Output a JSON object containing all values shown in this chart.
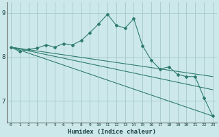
{
  "xlabel": "Humidex (Indice chaleur)",
  "bg_color": "#cce8ea",
  "grid_color": "#aacdd0",
  "line_color": "#2d7b6e",
  "xlim": [
    -0.5,
    23.5
  ],
  "ylim": [
    6.5,
    9.25
  ],
  "yticks": [
    7,
    8,
    9
  ],
  "xticks": [
    0,
    1,
    2,
    3,
    4,
    5,
    6,
    7,
    8,
    9,
    10,
    11,
    12,
    13,
    14,
    15,
    16,
    17,
    18,
    19,
    20,
    21,
    22,
    23
  ],
  "line1_x": [
    0,
    1,
    2,
    3,
    4,
    5,
    6,
    7,
    8,
    9,
    10,
    11,
    12,
    13,
    14,
    15,
    16,
    17,
    18,
    19,
    20,
    21,
    22,
    23
  ],
  "line1_y": [
    8.22,
    8.12,
    8.17,
    8.2,
    8.27,
    8.22,
    8.3,
    8.27,
    8.37,
    8.55,
    8.75,
    8.97,
    8.72,
    8.65,
    8.87,
    8.25,
    7.92,
    7.72,
    7.77,
    7.6,
    7.55,
    7.55,
    7.07,
    6.65
  ],
  "line2_x": [
    0,
    23
  ],
  "line2_y": [
    8.22,
    7.55
  ],
  "line3_x": [
    0,
    23
  ],
  "line3_y": [
    8.22,
    7.25
  ],
  "line4_x": [
    0,
    23
  ],
  "line4_y": [
    8.22,
    6.65
  ]
}
